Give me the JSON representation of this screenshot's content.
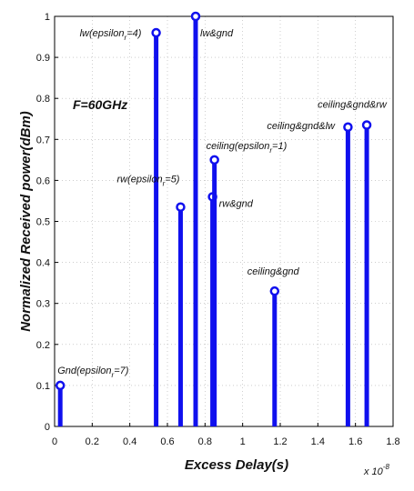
{
  "chart_data": {
    "type": "stem",
    "xlabel": "Excess Delay(s)",
    "ylabel": "Normalized Received power(dBm)",
    "x_multiplier": "x 10",
    "x_multiplier_exp": "-8",
    "inset_label": "F=60GHz",
    "xlim": [
      0,
      1.8
    ],
    "ylim": [
      0,
      1
    ],
    "x_ticks": [
      "0",
      "0.2",
      "0.4",
      "0.6",
      "0.8",
      "1",
      "1.2",
      "1.4",
      "1.6",
      "1.8"
    ],
    "y_ticks": [
      "0",
      "0.1",
      "0.2",
      "0.3",
      "0.4",
      "0.5",
      "0.6",
      "0.7",
      "0.8",
      "0.9",
      "1"
    ],
    "stem_color": "#1010ee",
    "points": [
      {
        "x": 0.03,
        "y": 0.1,
        "label": "Gnd(epsilon",
        "sub": "r",
        "tail": "=7)"
      },
      {
        "x": 0.54,
        "y": 0.96,
        "label": "lw(epsilon",
        "sub": "r",
        "tail": "=4)"
      },
      {
        "x": 0.67,
        "y": 0.535,
        "label": "rw(epsilon",
        "sub": "r",
        "tail": "=5)"
      },
      {
        "x": 0.75,
        "y": 1.0,
        "label": "lw&gnd",
        "sub": "",
        "tail": ""
      },
      {
        "x": 0.84,
        "y": 0.56,
        "label": "rw&gnd",
        "sub": "",
        "tail": ""
      },
      {
        "x": 0.85,
        "y": 0.65,
        "label": "ceiling(epsilon",
        "sub": "r",
        "tail": "=1)"
      },
      {
        "x": 1.17,
        "y": 0.33,
        "label": "ceiling&gnd",
        "sub": "",
        "tail": ""
      },
      {
        "x": 1.56,
        "y": 0.73,
        "label": "ceiling&gnd&lw",
        "sub": "",
        "tail": ""
      },
      {
        "x": 1.66,
        "y": 0.735,
        "label": "ceiling&gnd&rw",
        "sub": "",
        "tail": ""
      }
    ]
  }
}
